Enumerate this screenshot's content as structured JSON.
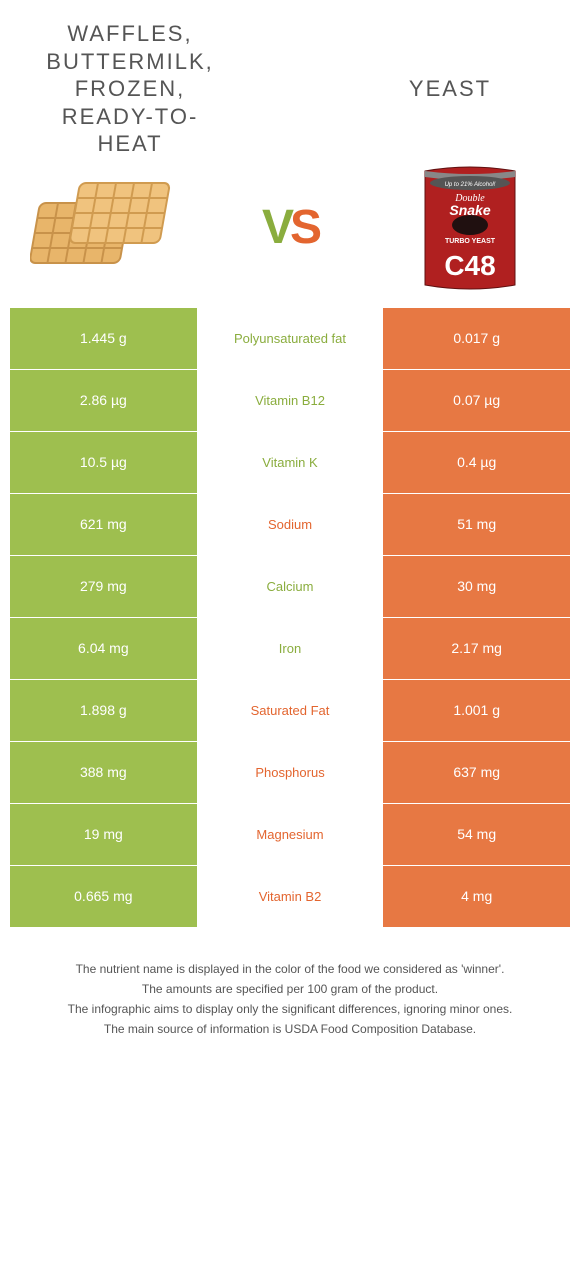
{
  "left_food": {
    "title": "WAFFLES, BUTTERMILK, FROZEN, READY-TO-HEAT",
    "color": "#9ebf4f"
  },
  "right_food": {
    "title": "YEAST",
    "color": "#e77843"
  },
  "vs": {
    "v": "V",
    "s": "S"
  },
  "nutrients": [
    {
      "label": "Polyunsaturated fat",
      "left": "1.445 g",
      "right": "0.017 g",
      "winner": "left"
    },
    {
      "label": "Vitamin B12",
      "left": "2.86 µg",
      "right": "0.07 µg",
      "winner": "left"
    },
    {
      "label": "Vitamin K",
      "left": "10.5 µg",
      "right": "0.4 µg",
      "winner": "left"
    },
    {
      "label": "Sodium",
      "left": "621 mg",
      "right": "51 mg",
      "winner": "right"
    },
    {
      "label": "Calcium",
      "left": "279 mg",
      "right": "30 mg",
      "winner": "left"
    },
    {
      "label": "Iron",
      "left": "6.04 mg",
      "right": "2.17 mg",
      "winner": "left"
    },
    {
      "label": "Saturated Fat",
      "left": "1.898 g",
      "right": "1.001 g",
      "winner": "right"
    },
    {
      "label": "Phosphorus",
      "left": "388 mg",
      "right": "637 mg",
      "winner": "right"
    },
    {
      "label": "Magnesium",
      "left": "19 mg",
      "right": "54 mg",
      "winner": "right"
    },
    {
      "label": "Vitamin B2",
      "left": "0.665 mg",
      "right": "4 mg",
      "winner": "right"
    }
  ],
  "winner_colors": {
    "left": "#8aad3e",
    "right": "#e3652f"
  },
  "footnotes": [
    "The nutrient name is displayed in the color of the food we considered as 'winner'.",
    "The amounts are specified per 100 gram of the product.",
    "The infographic aims to display only the significant differences, ignoring minor ones.",
    "The main source of information is USDA Food Composition Database."
  ],
  "packet": {
    "top_text": "Up to 21% Alcohol!",
    "brand1": "Double",
    "brand2": "Snake",
    "mid": "TURBO YEAST",
    "code": "C48"
  }
}
